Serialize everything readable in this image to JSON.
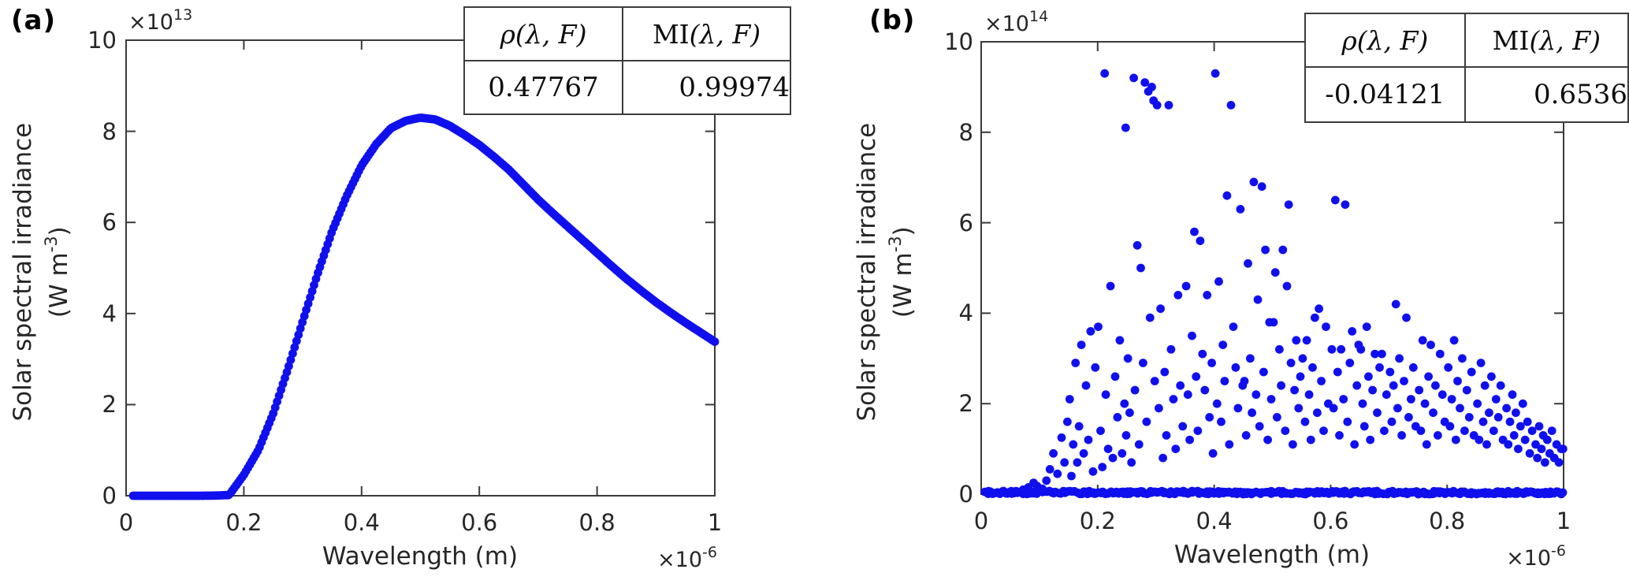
{
  "figure": {
    "panels": [
      {
        "label": "(a)",
        "y_axis": {
          "exp_base": "×10",
          "exp_power": "13",
          "label_line1": "Solar spectral irradiance",
          "unit_prefix": "(W m",
          "unit_power": "-3",
          "unit_suffix": ")",
          "ticks": [
            "0",
            "2",
            "4",
            "6",
            "8",
            "10"
          ]
        },
        "x_axis": {
          "label": "Wavelength (m)",
          "exp_base": "×10",
          "exp_power": "-6",
          "ticks": [
            "0",
            "0.2",
            "0.4",
            "0.6",
            "0.8",
            "1"
          ]
        },
        "stats_table": {
          "rho_header": "ρ(λ, F)",
          "mi_prefix": "MI",
          "mi_args": "(λ, F)",
          "rho_value": "0.47767",
          "mi_value": "0.99974"
        }
      },
      {
        "label": "(b)",
        "y_axis": {
          "exp_base": "×10",
          "exp_power": "14",
          "label_line1": "Solar spectral irradiance",
          "unit_prefix": "(W m",
          "unit_power": "-3",
          "unit_suffix": ")",
          "ticks": [
            "0",
            "2",
            "4",
            "6",
            "8",
            "10"
          ]
        },
        "x_axis": {
          "label": "Wavelength (m)",
          "exp_base": "×10",
          "exp_power": "-6",
          "ticks": [
            "0",
            "0.2",
            "0.4",
            "0.6",
            "0.8",
            "1"
          ]
        },
        "stats_table": {
          "rho_header": "ρ(λ, F)",
          "mi_prefix": "MI",
          "mi_args": "(λ, F)",
          "rho_value": "-0.04121",
          "mi_value": "0.6536"
        }
      }
    ]
  },
  "chart_data": [
    {
      "type": "scatter",
      "title": "",
      "xlabel": "Wavelength (m)",
      "ylabel": "Solar spectral irradiance (W m-3)",
      "x_unit_scale": "1e-6 m",
      "y_unit_scale": "1e13 W m-3",
      "xlim": [
        0,
        1
      ],
      "ylim": [
        0,
        10
      ],
      "grid": false,
      "legend": "none",
      "marker_color": "#1010ee",
      "series_form": "curve",
      "n_markers": 300,
      "description": "Smooth blackbody-like solar spectral irradiance curve, peak ~8.3e13 at 0.5e-6 m",
      "stats": {
        "rho": 0.47767,
        "MI": 0.99974
      },
      "points": [
        [
          0.012,
          0
        ],
        [
          0.05,
          0
        ],
        [
          0.1,
          0
        ],
        [
          0.125,
          0
        ],
        [
          0.15,
          0.003
        ],
        [
          0.175,
          0.015
        ],
        [
          0.2,
          0.46
        ],
        [
          0.225,
          1.01
        ],
        [
          0.25,
          1.81
        ],
        [
          0.275,
          2.79
        ],
        [
          0.3,
          3.83
        ],
        [
          0.325,
          4.86
        ],
        [
          0.35,
          5.81
        ],
        [
          0.375,
          6.59
        ],
        [
          0.4,
          7.25
        ],
        [
          0.425,
          7.72
        ],
        [
          0.45,
          8.07
        ],
        [
          0.475,
          8.23
        ],
        [
          0.5,
          8.3
        ],
        [
          0.525,
          8.26
        ],
        [
          0.55,
          8.12
        ],
        [
          0.575,
          7.92
        ],
        [
          0.6,
          7.7
        ],
        [
          0.625,
          7.44
        ],
        [
          0.65,
          7.16
        ],
        [
          0.675,
          6.83
        ],
        [
          0.7,
          6.5
        ],
        [
          0.725,
          6.2
        ],
        [
          0.75,
          5.91
        ],
        [
          0.775,
          5.62
        ],
        [
          0.8,
          5.33
        ],
        [
          0.825,
          5.04
        ],
        [
          0.85,
          4.76
        ],
        [
          0.875,
          4.5
        ],
        [
          0.9,
          4.25
        ],
        [
          0.925,
          4.02
        ],
        [
          0.95,
          3.8
        ],
        [
          0.975,
          3.59
        ],
        [
          1.0,
          3.38
        ]
      ]
    },
    {
      "type": "scatter",
      "title": "",
      "xlabel": "Wavelength (m)",
      "ylabel": "Solar spectral irradiance (W m-3)",
      "x_unit_scale": "1e-6 m",
      "y_unit_scale": "1e14 W m-3",
      "xlim": [
        0,
        1
      ],
      "ylim": [
        0,
        10
      ],
      "grid": false,
      "legend": "none",
      "marker_color": "#1010ee",
      "series_form": "cloud",
      "description": "Noisy scatter: dense near-zero baseline across full wavelength range plus dispersed points, max ~9.3e14 near 0.2-0.4e-6 m, decaying envelope toward 1e-6 m",
      "stats": {
        "rho": -0.04121,
        "MI": 0.6536
      },
      "baseline": {
        "n": 330,
        "x_range": [
          0.008,
          1.0
        ],
        "y_range": [
          0,
          0.07
        ]
      },
      "points": [
        [
          0.072,
          0.1
        ],
        [
          0.081,
          0.15
        ],
        [
          0.09,
          0.25
        ],
        [
          0.096,
          0.18
        ],
        [
          0.105,
          0.12
        ],
        [
          0.112,
          0.3
        ],
        [
          0.118,
          0.55
        ],
        [
          0.124,
          0.9
        ],
        [
          0.131,
          0.45
        ],
        [
          0.138,
          1.25
        ],
        [
          0.143,
          0.7
        ],
        [
          0.148,
          1.6
        ],
        [
          0.152,
          2.1
        ],
        [
          0.155,
          0.4
        ],
        [
          0.158,
          1.1
        ],
        [
          0.162,
          2.9
        ],
        [
          0.165,
          0.7
        ],
        [
          0.168,
          1.5
        ],
        [
          0.172,
          3.3
        ],
        [
          0.176,
          0.9
        ],
        [
          0.18,
          2.4
        ],
        [
          0.184,
          1.2
        ],
        [
          0.188,
          3.6
        ],
        [
          0.192,
          0.5
        ],
        [
          0.196,
          2.8
        ],
        [
          0.201,
          3.7
        ],
        [
          0.205,
          1.4
        ],
        [
          0.208,
          0.6
        ],
        [
          0.212,
          9.3
        ],
        [
          0.214,
          2.2
        ],
        [
          0.218,
          1.0
        ],
        [
          0.222,
          4.6
        ],
        [
          0.226,
          0.8
        ],
        [
          0.23,
          2.6
        ],
        [
          0.234,
          1.7
        ],
        [
          0.238,
          3.4
        ],
        [
          0.242,
          0.9
        ],
        [
          0.246,
          2.0
        ],
        [
          0.248,
          8.1
        ],
        [
          0.249,
          1.3
        ],
        [
          0.252,
          3.0
        ],
        [
          0.255,
          1.8
        ],
        [
          0.258,
          0.7
        ],
        [
          0.262,
          9.2
        ],
        [
          0.264,
          2.3
        ],
        [
          0.268,
          5.5
        ],
        [
          0.271,
          1.1
        ],
        [
          0.274,
          5.0
        ],
        [
          0.278,
          2.9
        ],
        [
          0.281,
          9.1
        ],
        [
          0.284,
          1.6
        ],
        [
          0.287,
          8.9
        ],
        [
          0.29,
          3.9
        ],
        [
          0.293,
          9.0
        ],
        [
          0.296,
          8.7
        ],
        [
          0.298,
          2.5
        ],
        [
          0.302,
          8.6
        ],
        [
          0.305,
          1.9
        ],
        [
          0.308,
          4.1
        ],
        [
          0.312,
          0.8
        ],
        [
          0.315,
          2.7
        ],
        [
          0.318,
          1.3
        ],
        [
          0.322,
          8.6
        ],
        [
          0.326,
          3.2
        ],
        [
          0.33,
          2.1
        ],
        [
          0.334,
          1.0
        ],
        [
          0.338,
          4.4
        ],
        [
          0.342,
          2.4
        ],
        [
          0.346,
          1.5
        ],
        [
          0.352,
          4.6
        ],
        [
          0.355,
          2.2
        ],
        [
          0.358,
          1.2
        ],
        [
          0.362,
          3.5
        ],
        [
          0.366,
          5.8
        ],
        [
          0.369,
          2.6
        ],
        [
          0.372,
          1.4
        ],
        [
          0.376,
          5.6
        ],
        [
          0.38,
          3.1
        ],
        [
          0.384,
          2.3
        ],
        [
          0.388,
          4.4
        ],
        [
          0.392,
          1.7
        ],
        [
          0.396,
          2.9
        ],
        [
          0.398,
          0.9
        ],
        [
          0.402,
          9.3
        ],
        [
          0.405,
          2.0
        ],
        [
          0.408,
          4.7
        ],
        [
          0.412,
          1.6
        ],
        [
          0.415,
          3.3
        ],
        [
          0.418,
          2.5
        ],
        [
          0.422,
          6.6
        ],
        [
          0.426,
          1.1
        ],
        [
          0.429,
          8.6
        ],
        [
          0.433,
          3.7
        ],
        [
          0.437,
          2.8
        ],
        [
          0.441,
          1.9
        ],
        [
          0.445,
          6.3
        ],
        [
          0.449,
          2.4
        ],
        [
          0.452,
          2.5
        ],
        [
          0.455,
          1.3
        ],
        [
          0.458,
          5.1
        ],
        [
          0.462,
          3.0
        ],
        [
          0.465,
          1.8
        ],
        [
          0.468,
          6.9
        ],
        [
          0.472,
          2.2
        ],
        [
          0.475,
          4.3
        ],
        [
          0.478,
          1.5
        ],
        [
          0.482,
          6.8
        ],
        [
          0.485,
          2.7
        ],
        [
          0.488,
          5.4
        ],
        [
          0.492,
          1.2
        ],
        [
          0.495,
          3.8
        ],
        [
          0.498,
          2.1
        ],
        [
          0.502,
          3.8
        ],
        [
          0.505,
          4.9
        ],
        [
          0.508,
          1.7
        ],
        [
          0.512,
          3.2
        ],
        [
          0.515,
          2.4
        ],
        [
          0.518,
          5.4
        ],
        [
          0.522,
          1.4
        ],
        [
          0.525,
          4.6
        ],
        [
          0.528,
          6.4
        ],
        [
          0.532,
          2.9
        ],
        [
          0.535,
          1.1
        ],
        [
          0.538,
          2.3
        ],
        [
          0.541,
          3.4
        ],
        [
          0.545,
          1.9
        ],
        [
          0.548,
          2.6
        ],
        [
          0.552,
          3.0
        ],
        [
          0.556,
          1.6
        ],
        [
          0.559,
          3.4
        ],
        [
          0.563,
          2.2
        ],
        [
          0.566,
          1.2
        ],
        [
          0.569,
          2.8
        ],
        [
          0.573,
          3.9
        ],
        [
          0.577,
          1.8
        ],
        [
          0.58,
          4.1
        ],
        [
          0.584,
          2.5
        ],
        [
          0.588,
          1.4
        ],
        [
          0.592,
          3.7
        ],
        [
          0.596,
          2.0
        ],
        [
          0.602,
          3.2
        ],
        [
          0.605,
          1.9
        ],
        [
          0.608,
          6.5
        ],
        [
          0.612,
          2.7
        ],
        [
          0.615,
          1.3
        ],
        [
          0.618,
          3.2
        ],
        [
          0.622,
          2.1
        ],
        [
          0.625,
          6.4
        ],
        [
          0.629,
          1.6
        ],
        [
          0.633,
          2.9
        ],
        [
          0.637,
          3.6
        ],
        [
          0.641,
          1.1
        ],
        [
          0.645,
          2.4
        ],
        [
          0.648,
          3.3
        ],
        [
          0.652,
          3.2
        ],
        [
          0.655,
          2.0
        ],
        [
          0.658,
          1.5
        ],
        [
          0.662,
          3.7
        ],
        [
          0.665,
          2.6
        ],
        [
          0.668,
          1.2
        ],
        [
          0.672,
          2.3
        ],
        [
          0.676,
          3.1
        ],
        [
          0.68,
          1.8
        ],
        [
          0.684,
          2.8
        ],
        [
          0.688,
          3.1
        ],
        [
          0.692,
          1.4
        ],
        [
          0.696,
          2.2
        ],
        [
          0.702,
          2.7
        ],
        [
          0.705,
          1.6
        ],
        [
          0.708,
          2.4
        ],
        [
          0.712,
          4.2
        ],
        [
          0.715,
          1.9
        ],
        [
          0.718,
          3.0
        ],
        [
          0.722,
          1.3
        ],
        [
          0.726,
          2.5
        ],
        [
          0.73,
          3.9
        ],
        [
          0.734,
          1.7
        ],
        [
          0.738,
          2.1
        ],
        [
          0.742,
          2.8
        ],
        [
          0.746,
          1.5
        ],
        [
          0.752,
          2.3
        ],
        [
          0.755,
          1.4
        ],
        [
          0.758,
          3.4
        ],
        [
          0.762,
          2.0
        ],
        [
          0.765,
          1.1
        ],
        [
          0.768,
          2.6
        ],
        [
          0.772,
          3.3
        ],
        [
          0.776,
          1.8
        ],
        [
          0.78,
          2.4
        ],
        [
          0.784,
          1.3
        ],
        [
          0.788,
          3.1
        ],
        [
          0.792,
          2.2
        ],
        [
          0.796,
          1.6
        ],
        [
          0.802,
          2.8
        ],
        [
          0.805,
          1.5
        ],
        [
          0.808,
          2.1
        ],
        [
          0.812,
          3.4
        ],
        [
          0.815,
          1.2
        ],
        [
          0.818,
          2.5
        ],
        [
          0.822,
          1.9
        ],
        [
          0.826,
          3.0
        ],
        [
          0.83,
          1.4
        ],
        [
          0.834,
          2.3
        ],
        [
          0.838,
          1.7
        ],
        [
          0.842,
          2.7
        ],
        [
          0.846,
          1.3
        ],
        [
          0.852,
          2.0
        ],
        [
          0.855,
          1.2
        ],
        [
          0.858,
          2.9
        ],
        [
          0.862,
          1.6
        ],
        [
          0.865,
          2.4
        ],
        [
          0.868,
          1.1
        ],
        [
          0.872,
          1.8
        ],
        [
          0.876,
          2.6
        ],
        [
          0.88,
          1.4
        ],
        [
          0.884,
          2.1
        ],
        [
          0.888,
          1.7
        ],
        [
          0.892,
          2.4
        ],
        [
          0.896,
          1.2
        ],
        [
          0.902,
          1.9
        ],
        [
          0.905,
          1.1
        ],
        [
          0.908,
          1.6
        ],
        [
          0.912,
          2.2
        ],
        [
          0.915,
          1.3
        ],
        [
          0.918,
          1.8
        ],
        [
          0.922,
          1.0
        ],
        [
          0.926,
          1.5
        ],
        [
          0.93,
          2.0
        ],
        [
          0.934,
          1.2
        ],
        [
          0.938,
          1.6
        ],
        [
          0.942,
          0.9
        ],
        [
          0.946,
          1.4
        ],
        [
          0.952,
          1.1
        ],
        [
          0.955,
          0.8
        ],
        [
          0.958,
          1.5
        ],
        [
          0.962,
          1.0
        ],
        [
          0.965,
          1.3
        ],
        [
          0.968,
          0.7
        ],
        [
          0.972,
          1.2
        ],
        [
          0.976,
          0.9
        ],
        [
          0.98,
          1.4
        ],
        [
          0.984,
          0.8
        ],
        [
          0.988,
          1.1
        ],
        [
          0.992,
          0.7
        ],
        [
          0.996,
          1.0
        ],
        [
          0.999,
          1.0
        ]
      ]
    }
  ]
}
